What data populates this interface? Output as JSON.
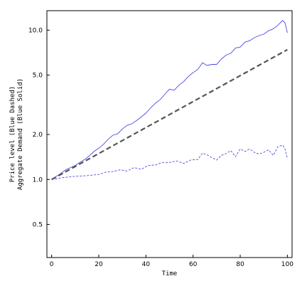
{
  "chart_data": {
    "type": "line",
    "title": "",
    "xlabel": "Time",
    "ylabel_lines": [
      "Price level (Blue Dashed)",
      "Aggregate Demand (Blue Solid)"
    ],
    "y_scale": "log",
    "xlim": [
      -2,
      102
    ],
    "ylim": [
      0.3,
      13.5
    ],
    "x_ticks": [
      0,
      20,
      40,
      60,
      80,
      100
    ],
    "x_tick_labels": [
      "0",
      "20",
      "40",
      "60",
      "80",
      "100"
    ],
    "y_ticks": [
      0.5,
      1.0,
      2.0,
      5.0,
      10.0
    ],
    "y_tick_labels": [
      "0.5",
      "1.0",
      "2.0",
      "5.0",
      "10.0"
    ],
    "grid": false,
    "legend": "none",
    "series": [
      {
        "style": "solid",
        "color": "#4a4ae0",
        "points": [
          [
            0,
            1.0
          ],
          [
            2,
            1.05
          ],
          [
            4,
            1.1
          ],
          [
            6,
            1.16
          ],
          [
            8,
            1.2
          ],
          [
            10,
            1.24
          ],
          [
            12,
            1.3
          ],
          [
            14,
            1.36
          ],
          [
            16,
            1.44
          ],
          [
            18,
            1.54
          ],
          [
            20,
            1.62
          ],
          [
            22,
            1.72
          ],
          [
            24,
            1.86
          ],
          [
            26,
            1.98
          ],
          [
            28,
            2.02
          ],
          [
            30,
            2.18
          ],
          [
            32,
            2.3
          ],
          [
            34,
            2.36
          ],
          [
            36,
            2.48
          ],
          [
            38,
            2.62
          ],
          [
            40,
            2.78
          ],
          [
            42,
            3.02
          ],
          [
            44,
            3.24
          ],
          [
            46,
            3.42
          ],
          [
            48,
            3.72
          ],
          [
            50,
            4.02
          ],
          [
            52,
            3.96
          ],
          [
            54,
            4.28
          ],
          [
            56,
            4.52
          ],
          [
            58,
            4.9
          ],
          [
            60,
            5.2
          ],
          [
            62,
            5.45
          ],
          [
            64,
            6.05
          ],
          [
            66,
            5.8
          ],
          [
            68,
            5.9
          ],
          [
            70,
            5.9
          ],
          [
            72,
            6.4
          ],
          [
            74,
            6.8
          ],
          [
            76,
            7.0
          ],
          [
            78,
            7.6
          ],
          [
            80,
            7.7
          ],
          [
            82,
            8.3
          ],
          [
            84,
            8.5
          ],
          [
            86,
            8.9
          ],
          [
            88,
            9.2
          ],
          [
            90,
            9.4
          ],
          [
            92,
            9.9
          ],
          [
            94,
            10.2
          ],
          [
            96,
            10.8
          ],
          [
            98,
            11.6
          ],
          [
            99,
            11.2
          ],
          [
            100,
            9.6
          ]
        ]
      },
      {
        "style": "dashed",
        "color": "#4a4ae0",
        "points": [
          [
            0,
            1.0
          ],
          [
            5,
            1.03
          ],
          [
            10,
            1.05
          ],
          [
            15,
            1.06
          ],
          [
            20,
            1.08
          ],
          [
            23,
            1.12
          ],
          [
            26,
            1.13
          ],
          [
            29,
            1.16
          ],
          [
            32,
            1.14
          ],
          [
            35,
            1.2
          ],
          [
            38,
            1.17
          ],
          [
            41,
            1.24
          ],
          [
            44,
            1.25
          ],
          [
            47,
            1.3
          ],
          [
            50,
            1.3
          ],
          [
            53,
            1.33
          ],
          [
            56,
            1.28
          ],
          [
            59,
            1.35
          ],
          [
            62,
            1.36
          ],
          [
            64,
            1.5
          ],
          [
            66,
            1.46
          ],
          [
            68,
            1.4
          ],
          [
            70,
            1.35
          ],
          [
            72,
            1.45
          ],
          [
            74,
            1.49
          ],
          [
            76,
            1.56
          ],
          [
            78,
            1.42
          ],
          [
            80,
            1.6
          ],
          [
            82,
            1.54
          ],
          [
            84,
            1.6
          ],
          [
            86,
            1.52
          ],
          [
            88,
            1.48
          ],
          [
            90,
            1.52
          ],
          [
            92,
            1.58
          ],
          [
            94,
            1.45
          ],
          [
            96,
            1.66
          ],
          [
            98,
            1.7
          ],
          [
            99,
            1.6
          ],
          [
            100,
            1.38
          ]
        ]
      },
      {
        "style": "dashed-heavy",
        "color": "#555555",
        "points": [
          [
            0,
            1.0
          ],
          [
            100,
            7.4
          ]
        ]
      }
    ]
  }
}
